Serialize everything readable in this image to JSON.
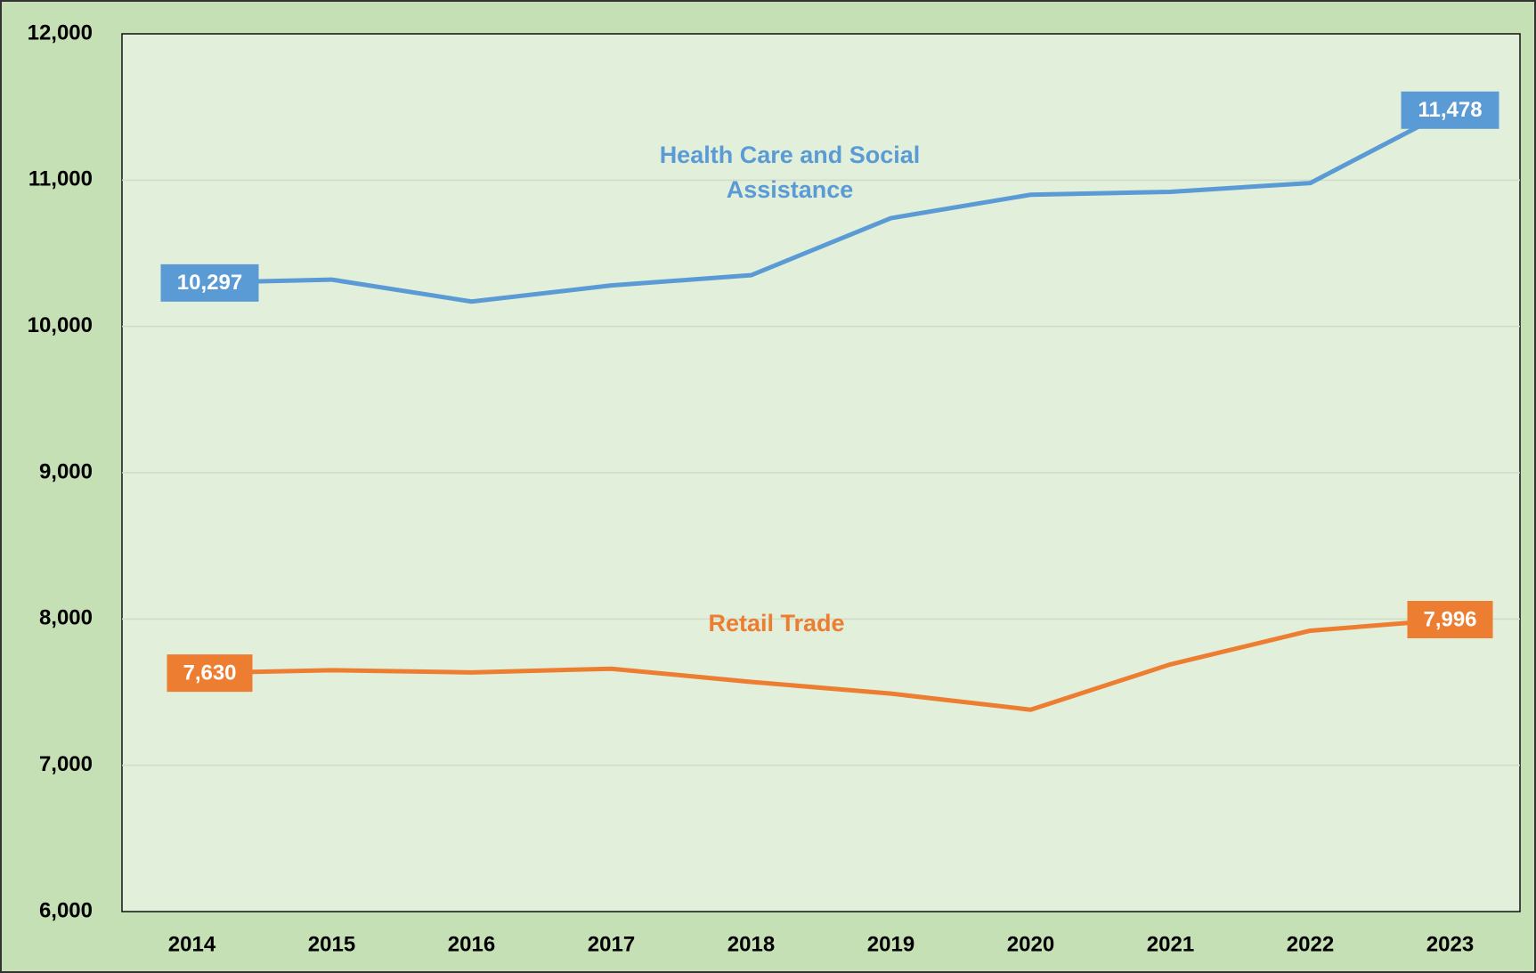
{
  "chart_data": {
    "type": "line",
    "categories": [
      "2014",
      "2015",
      "2016",
      "2017",
      "2018",
      "2019",
      "2020",
      "2021",
      "2022",
      "2023"
    ],
    "series": [
      {
        "name": "Health Care and Social Assistance",
        "color": "#5b9bd5",
        "values": [
          10297,
          10320,
          10170,
          10280,
          10350,
          10740,
          10900,
          10920,
          10980,
          11478
        ],
        "value_labels": [
          "10,297",
          null,
          null,
          null,
          null,
          null,
          null,
          null,
          null,
          "11,478"
        ]
      },
      {
        "name": "Retail Trade",
        "color": "#ed7d31",
        "values": [
          7630,
          7650,
          7635,
          7660,
          7570,
          7490,
          7380,
          7690,
          7920,
          7996
        ],
        "value_labels": [
          "7,630",
          null,
          null,
          null,
          null,
          null,
          null,
          null,
          null,
          "7,996"
        ]
      }
    ],
    "ylim": [
      6000,
      12000
    ],
    "yticks": [
      {
        "value": 6000,
        "label": "6,000"
      },
      {
        "value": 7000,
        "label": "7,000"
      },
      {
        "value": 8000,
        "label": "8,000"
      },
      {
        "value": 9000,
        "label": "9,000"
      },
      {
        "value": 10000,
        "label": "10,000"
      },
      {
        "value": 11000,
        "label": "11,000"
      },
      {
        "value": 12000,
        "label": "12,000"
      }
    ],
    "grid": true
  }
}
